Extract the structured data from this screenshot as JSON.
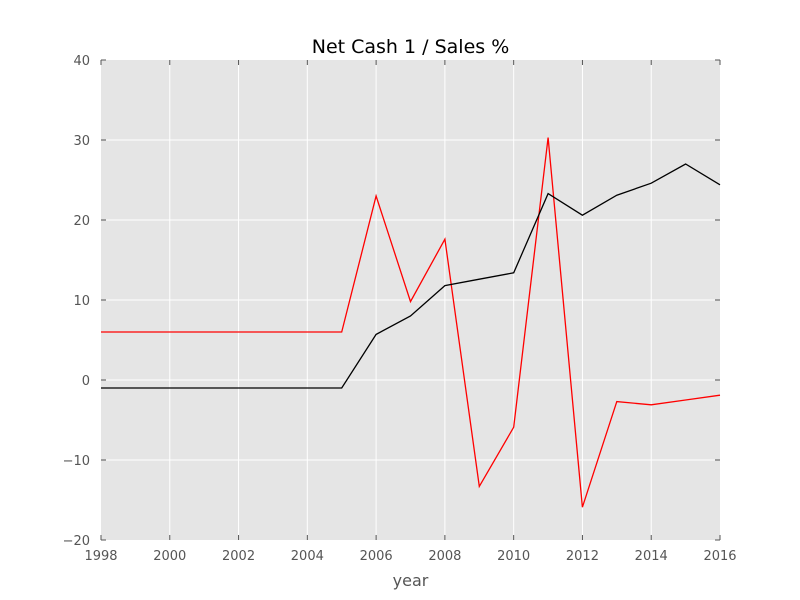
{
  "chart_data": {
    "type": "line",
    "title": "Net Cash 1 / Sales %",
    "xlabel": "year",
    "ylabel": "",
    "xlim": [
      1998,
      2016
    ],
    "ylim": [
      -20,
      40
    ],
    "xticks": [
      1998,
      2000,
      2002,
      2004,
      2006,
      2008,
      2010,
      2012,
      2014,
      2016
    ],
    "yticks": [
      -20,
      -10,
      0,
      10,
      20,
      30,
      40
    ],
    "ytick_labels": [
      "−20",
      "−10",
      "0",
      "10",
      "20",
      "30",
      "40"
    ],
    "grid": true,
    "background": "#e5e5e5",
    "x": [
      1998,
      1999,
      2000,
      2001,
      2002,
      2003,
      2004,
      2005,
      2006,
      2007,
      2008,
      2009,
      2010,
      2011,
      2012,
      2013,
      2014,
      2015,
      2016
    ],
    "series": [
      {
        "color": "#ff0000",
        "values": [
          6.0,
          6.0,
          6.0,
          6.0,
          6.0,
          6.0,
          6.0,
          6.0,
          23.0,
          9.8,
          17.6,
          -13.3,
          -5.9,
          30.3,
          -15.9,
          -2.7,
          -3.1,
          -2.5,
          -1.9
        ]
      },
      {
        "color": "#000000",
        "values": [
          -1.0,
          -1.0,
          -1.0,
          -1.0,
          -1.0,
          -1.0,
          -1.0,
          -1.0,
          5.7,
          8.0,
          11.8,
          12.6,
          13.4,
          23.3,
          20.6,
          23.1,
          24.6,
          27.0,
          24.4
        ]
      }
    ]
  }
}
